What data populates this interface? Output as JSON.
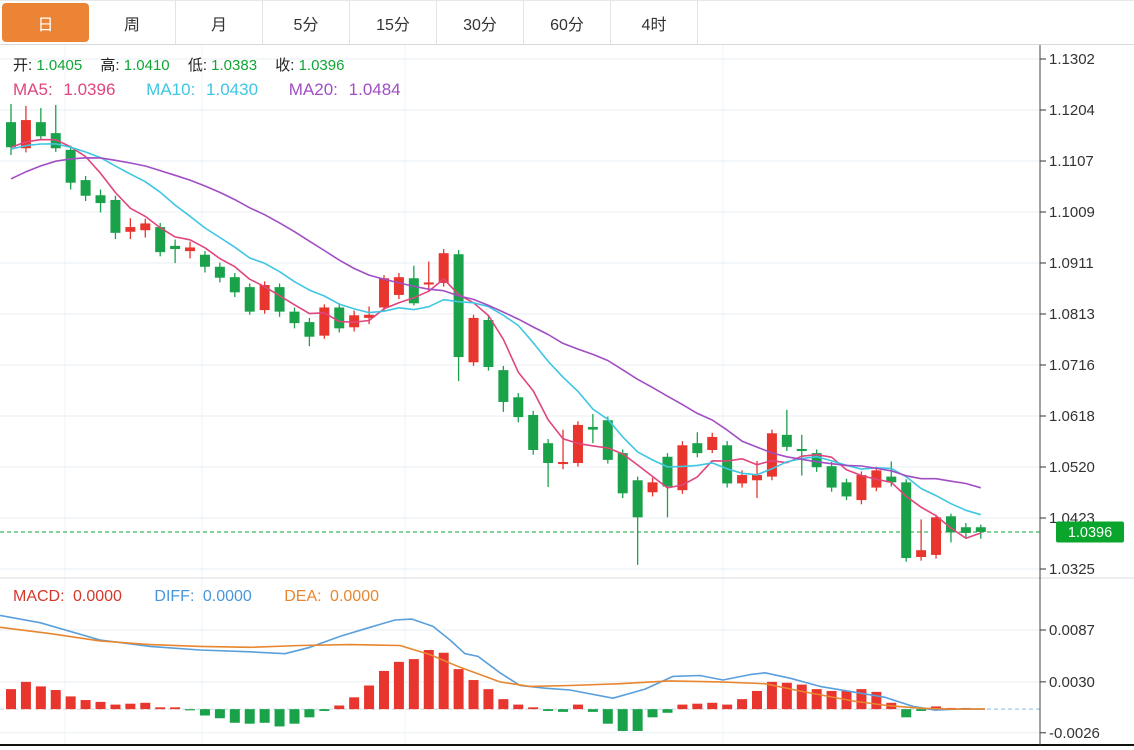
{
  "tabs": [
    {
      "label": "日",
      "active": true
    },
    {
      "label": "周",
      "active": false
    },
    {
      "label": "月",
      "active": false
    },
    {
      "label": "5分",
      "active": false
    },
    {
      "label": "15分",
      "active": false
    },
    {
      "label": "30分",
      "active": false
    },
    {
      "label": "60分",
      "active": false
    },
    {
      "label": "4时",
      "active": false
    }
  ],
  "legend": {
    "open_label": "开:",
    "open": "1.0405",
    "high_label": "高:",
    "high": "1.0410",
    "low_label": "低:",
    "low": "1.0383",
    "close_label": "收:",
    "close": "1.0396",
    "ma5_label": "MA5:",
    "ma5": "1.0396",
    "ma10_label": "MA10:",
    "ma10": "1.0430",
    "ma20_label": "MA20:",
    "ma20": "1.0484"
  },
  "macd_legend": {
    "macd_label": "MACD:",
    "macd": "0.0000",
    "diff_label": "DIFF:",
    "diff": "0.0000",
    "dea_label": "DEA:",
    "dea": "0.0000"
  },
  "colors": {
    "up": "#E8352E",
    "down": "#1AA24B",
    "ma5": "#E0457E",
    "ma10": "#3EC6E4",
    "ma20": "#A14EC4",
    "diff": "#5A9FDC",
    "dea": "#E8862F",
    "tab_active_bg": "#EC8435",
    "badge_bg": "#0AA52C",
    "price_line": "#0DA832",
    "value_green": "#0FA636",
    "macd_label_red": "#D4382B",
    "diff_label_blue": "#4A96DB",
    "dea_label_orange": "#E8872F",
    "grid": "#E9EFF4",
    "axis": "#333333"
  },
  "chart_data": {
    "type": "candlestick_with_macd",
    "title": "",
    "price_axis_ticks": [
      "1.1302",
      "1.1204",
      "1.1107",
      "1.1009",
      "1.0911",
      "1.0813",
      "1.0716",
      "1.0618",
      "1.0520",
      "1.0423",
      "1.0325"
    ],
    "price_axis_range": [
      1.0276,
      1.1302
    ],
    "current_price": "1.0396",
    "current_price_value": 1.0396,
    "grid": true,
    "legend_position": "top-left",
    "candles_ohlc": [
      [
        1.1181,
        1.1216,
        1.1118,
        1.1133
      ],
      [
        1.1131,
        1.1212,
        1.1123,
        1.1185
      ],
      [
        1.1181,
        1.1208,
        1.1148,
        1.1154
      ],
      [
        1.116,
        1.1214,
        1.1124,
        1.1131
      ],
      [
        1.1128,
        1.1136,
        1.1052,
        1.1065
      ],
      [
        1.107,
        1.1078,
        1.103,
        1.104
      ],
      [
        1.1041,
        1.1052,
        1.1008,
        1.1026
      ],
      [
        1.1032,
        1.104,
        1.0957,
        1.0969
      ],
      [
        1.0971,
        1.0997,
        1.0957,
        1.098
      ],
      [
        1.0974,
        1.0996,
        1.096,
        1.0987
      ],
      [
        1.098,
        1.0988,
        1.0924,
        1.0932
      ],
      [
        1.0944,
        1.0956,
        1.0911,
        1.0938
      ],
      [
        1.0934,
        1.0952,
        1.092,
        1.0941
      ],
      [
        1.0927,
        1.0934,
        1.0893,
        1.0904
      ],
      [
        1.0904,
        1.0912,
        1.0874,
        1.0883
      ],
      [
        1.0884,
        1.0892,
        1.0846,
        1.0855
      ],
      [
        1.0865,
        1.0872,
        1.0812,
        1.0818
      ],
      [
        1.0821,
        1.0876,
        1.0814,
        1.0869
      ],
      [
        1.0865,
        1.0872,
        1.0808,
        1.0818
      ],
      [
        1.0818,
        1.0826,
        1.0786,
        1.0796
      ],
      [
        1.0798,
        1.0806,
        1.0752,
        1.077
      ],
      [
        1.0772,
        1.0832,
        1.0766,
        1.0826
      ],
      [
        1.0826,
        1.0834,
        1.0778,
        1.0786
      ],
      [
        1.0788,
        1.082,
        1.078,
        1.0811
      ],
      [
        1.0806,
        1.0828,
        1.0794,
        1.0812
      ],
      [
        1.0826,
        1.0888,
        1.082,
        1.0882
      ],
      [
        1.085,
        1.0892,
        1.0842,
        1.0884
      ],
      [
        1.0882,
        1.0906,
        1.083,
        1.0834
      ],
      [
        1.087,
        1.0914,
        1.0858,
        1.0874
      ],
      [
        1.0873,
        1.0938,
        1.0866,
        1.093
      ],
      [
        1.0928,
        1.0936,
        1.0685,
        1.0731
      ],
      [
        1.0721,
        1.0812,
        1.0714,
        1.0806
      ],
      [
        1.0802,
        1.081,
        1.0705,
        1.0712
      ],
      [
        1.0706,
        1.0714,
        1.0626,
        1.0645
      ],
      [
        1.0654,
        1.0662,
        1.0606,
        1.0616
      ],
      [
        1.062,
        1.0628,
        1.0544,
        1.0553
      ],
      [
        1.0566,
        1.0574,
        1.0482,
        1.0528
      ],
      [
        1.0526,
        1.0592,
        1.0516,
        1.053
      ],
      [
        1.0528,
        1.0608,
        1.0521,
        1.0601
      ],
      [
        1.0597,
        1.0622,
        1.0566,
        1.0592
      ],
      [
        1.061,
        1.0617,
        1.0527,
        1.0534
      ],
      [
        1.0547,
        1.0554,
        1.0461,
        1.047
      ],
      [
        1.0495,
        1.0502,
        1.0333,
        1.0424
      ],
      [
        1.0472,
        1.05,
        1.0464,
        1.0491
      ],
      [
        1.054,
        1.0547,
        1.0424,
        1.0483
      ],
      [
        1.0476,
        1.057,
        1.0469,
        1.0562
      ],
      [
        1.0566,
        1.0587,
        1.0539,
        1.0547
      ],
      [
        1.0553,
        1.0586,
        1.0547,
        1.0578
      ],
      [
        1.0562,
        1.057,
        1.0481,
        1.0489
      ],
      [
        1.0489,
        1.0514,
        1.0481,
        1.0505
      ],
      [
        1.0495,
        1.0532,
        1.0461,
        1.0505
      ],
      [
        1.0502,
        1.0592,
        1.0495,
        1.0585
      ],
      [
        1.0582,
        1.063,
        1.0551,
        1.0559
      ],
      [
        1.0555,
        1.0582,
        1.0504,
        1.0551
      ],
      [
        1.0547,
        1.0554,
        1.0511,
        1.052
      ],
      [
        1.0522,
        1.053,
        1.0473,
        1.0481
      ],
      [
        1.0491,
        1.0498,
        1.0457,
        1.0464
      ],
      [
        1.0457,
        1.0512,
        1.0449,
        1.0505
      ],
      [
        1.0481,
        1.0521,
        1.0474,
        1.0514
      ],
      [
        1.0502,
        1.0531,
        1.0483,
        1.0491
      ],
      [
        1.0491,
        1.0497,
        1.0339,
        1.0346
      ],
      [
        1.0348,
        1.042,
        1.0341,
        1.0361
      ],
      [
        1.0352,
        1.0429,
        1.0345,
        1.0424
      ],
      [
        1.0426,
        1.0431,
        1.0376,
        1.0395
      ],
      [
        1.0405,
        1.0413,
        1.0383,
        1.0394
      ],
      [
        1.0405,
        1.041,
        1.0383,
        1.0396
      ]
    ],
    "ma_periods": [
      5,
      10,
      20
    ],
    "ma_seed_closes": [
      1.09,
      1.0915,
      1.093,
      1.095,
      1.0975,
      1.1,
      1.103,
      1.106,
      1.1085,
      1.11,
      1.111,
      1.1118,
      1.1124,
      1.1128,
      1.113,
      1.1131,
      1.1132,
      1.1132,
      1.1133,
      1.1133
    ],
    "macd_axis_ticks": [
      "0.0087",
      "0.0030",
      "-0.0026"
    ],
    "macd_axis_tick_values": [
      0.0087,
      0.003,
      -0.0026
    ],
    "macd_hist": [
      0.0022,
      0.003,
      0.0025,
      0.0021,
      0.0014,
      0.001,
      0.0008,
      0.0005,
      0.0006,
      0.0007,
      0.0002,
      0.0002,
      -0.0001,
      -0.0007,
      -0.001,
      -0.0015,
      -0.0016,
      -0.0015,
      -0.0019,
      -0.0016,
      -0.0009,
      -0.0002,
      0.0004,
      0.0013,
      0.0026,
      0.0042,
      0.0052,
      0.0055,
      0.0065,
      0.0062,
      0.0044,
      0.0032,
      0.0022,
      0.0011,
      0.0005,
      0.0002,
      -0.0002,
      -0.0003,
      0.0005,
      -0.0003,
      -0.0016,
      -0.0024,
      -0.0024,
      -0.0009,
      -0.0004,
      0.0005,
      0.0006,
      0.0007,
      0.0005,
      0.0011,
      0.002,
      0.003,
      0.0029,
      0.0027,
      0.0022,
      0.002,
      0.002,
      0.0022,
      0.0019,
      0.0007,
      -0.0009,
      -0.0002,
      0.0003,
      0.0001,
      0.0001,
      0.0
    ],
    "diff_line": [
      [
        0,
        0.0103
      ],
      [
        40,
        0.0095
      ],
      [
        100,
        0.0076
      ],
      [
        150,
        0.0069
      ],
      [
        200,
        0.0065
      ],
      [
        250,
        0.0063
      ],
      [
        285,
        0.0061
      ],
      [
        310,
        0.0068
      ],
      [
        340,
        0.008
      ],
      [
        370,
        0.009
      ],
      [
        395,
        0.0098
      ],
      [
        412,
        0.0099
      ],
      [
        433,
        0.0091
      ],
      [
        450,
        0.0076
      ],
      [
        465,
        0.0061
      ],
      [
        478,
        0.0058
      ],
      [
        500,
        0.004
      ],
      [
        520,
        0.0026
      ],
      [
        545,
        0.0023
      ],
      [
        570,
        0.0021
      ],
      [
        613,
        0.0012
      ],
      [
        645,
        0.0022
      ],
      [
        673,
        0.0036
      ],
      [
        700,
        0.0037
      ],
      [
        723,
        0.0032
      ],
      [
        750,
        0.0038
      ],
      [
        765,
        0.004
      ],
      [
        790,
        0.0034
      ],
      [
        820,
        0.0025
      ],
      [
        853,
        0.0019
      ],
      [
        885,
        0.0013
      ],
      [
        913,
        0.0003
      ],
      [
        935,
        -0.0001
      ],
      [
        960,
        0.0
      ],
      [
        985,
        0.0
      ]
    ],
    "dea_line": [
      [
        0,
        0.009
      ],
      [
        50,
        0.0083
      ],
      [
        100,
        0.0075
      ],
      [
        150,
        0.0071
      ],
      [
        200,
        0.0069
      ],
      [
        250,
        0.0068
      ],
      [
        300,
        0.007
      ],
      [
        350,
        0.0071
      ],
      [
        400,
        0.007
      ],
      [
        430,
        0.006
      ],
      [
        460,
        0.0046
      ],
      [
        500,
        0.003
      ],
      [
        530,
        0.0025
      ],
      [
        570,
        0.0026
      ],
      [
        620,
        0.0028
      ],
      [
        670,
        0.0031
      ],
      [
        720,
        0.003
      ],
      [
        765,
        0.0028
      ],
      [
        800,
        0.002
      ],
      [
        853,
        0.0009
      ],
      [
        887,
        0.0004
      ],
      [
        920,
        0.0001
      ],
      [
        950,
        0.0
      ],
      [
        985,
        0.0
      ]
    ]
  }
}
